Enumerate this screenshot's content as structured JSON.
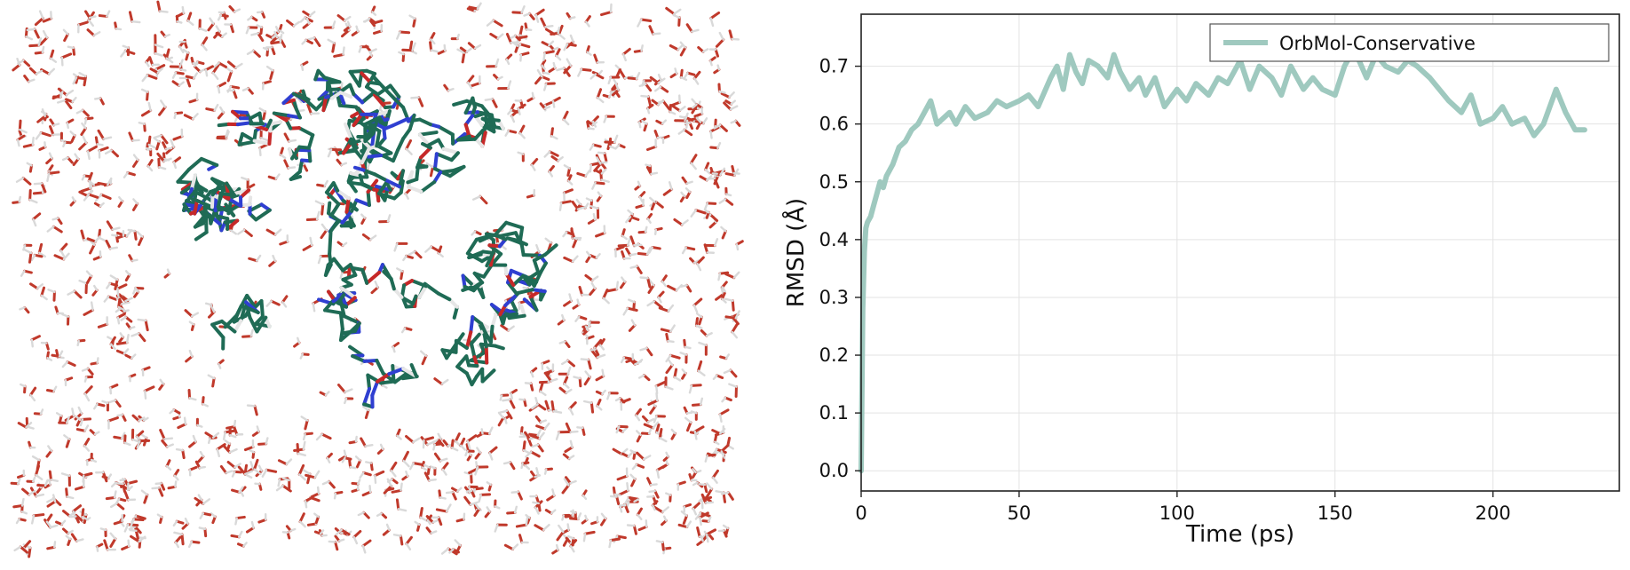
{
  "molecule_view": {
    "solvent_colors": {
      "oxygen": "#c0392b",
      "hydrogen": "#d9d9d9"
    },
    "protein_colors": {
      "carbon": "#1f6b55",
      "nitrogen": "#2f3fd1",
      "oxygen": "#c62828",
      "hydrogen": "#e6e6e6"
    }
  },
  "chart_data": {
    "type": "line",
    "xlabel": "Time (ps)",
    "ylabel": "RMSD (Å)",
    "xlim": [
      0,
      240
    ],
    "ylim": [
      -0.035,
      0.79
    ],
    "xticks": [
      0,
      50,
      100,
      150,
      200
    ],
    "yticks": [
      0.0,
      0.1,
      0.2,
      0.3,
      0.4,
      0.5,
      0.6,
      0.7
    ],
    "xtick_labels": [
      "0",
      "50",
      "100",
      "150",
      "200"
    ],
    "ytick_labels": [
      "0.0",
      "0.1",
      "0.2",
      "0.3",
      "0.4",
      "0.5",
      "0.6",
      "0.7"
    ],
    "grid": true,
    "legend_position": "top-right",
    "series": [
      {
        "name": "OrbMol-Conservative",
        "color": "#9fc9bf",
        "x": [
          0,
          0.5,
          1,
          1.5,
          2,
          3,
          4,
          5,
          6,
          7,
          8,
          10,
          12,
          14,
          16,
          18,
          20,
          22,
          24,
          26,
          28,
          30,
          33,
          36,
          40,
          43,
          46,
          50,
          53,
          56,
          60,
          62,
          64,
          66,
          68,
          70,
          72,
          75,
          78,
          80,
          82,
          85,
          88,
          90,
          93,
          96,
          100,
          103,
          106,
          110,
          113,
          116,
          120,
          123,
          126,
          130,
          133,
          136,
          140,
          143,
          146,
          150,
          153,
          156,
          160,
          163,
          166,
          170,
          173,
          176,
          180,
          183,
          186,
          190,
          193,
          196,
          200,
          203,
          206,
          210,
          213,
          216,
          220,
          223,
          226,
          229
        ],
        "y": [
          0.0,
          0.28,
          0.38,
          0.42,
          0.43,
          0.44,
          0.46,
          0.48,
          0.5,
          0.49,
          0.51,
          0.53,
          0.56,
          0.57,
          0.59,
          0.6,
          0.62,
          0.64,
          0.6,
          0.61,
          0.62,
          0.6,
          0.63,
          0.61,
          0.62,
          0.64,
          0.63,
          0.64,
          0.65,
          0.63,
          0.68,
          0.7,
          0.66,
          0.72,
          0.69,
          0.67,
          0.71,
          0.7,
          0.68,
          0.72,
          0.69,
          0.66,
          0.68,
          0.65,
          0.68,
          0.63,
          0.66,
          0.64,
          0.67,
          0.65,
          0.68,
          0.67,
          0.71,
          0.66,
          0.7,
          0.68,
          0.65,
          0.7,
          0.66,
          0.68,
          0.66,
          0.65,
          0.7,
          0.73,
          0.68,
          0.72,
          0.7,
          0.69,
          0.71,
          0.7,
          0.68,
          0.66,
          0.64,
          0.62,
          0.65,
          0.6,
          0.61,
          0.63,
          0.6,
          0.61,
          0.58,
          0.6,
          0.66,
          0.62,
          0.59,
          0.59
        ]
      }
    ]
  }
}
